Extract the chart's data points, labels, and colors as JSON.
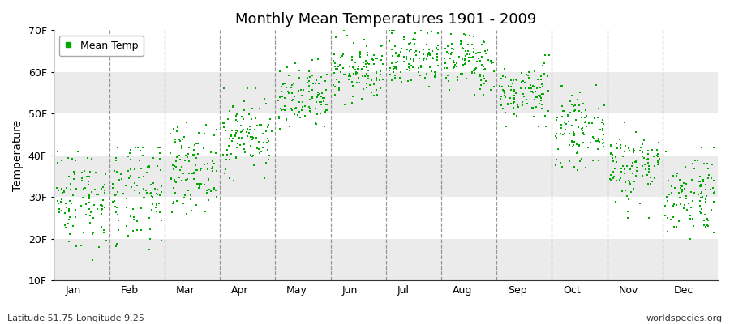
{
  "title": "Monthly Mean Temperatures 1901 - 2009",
  "ylabel": "Temperature",
  "bottom_left": "Latitude 51.75 Longitude 9.25",
  "bottom_right": "worldspecies.org",
  "legend_label": "Mean Temp",
  "marker_color": "#00aa00",
  "ylim": [
    10,
    70
  ],
  "yticks": [
    10,
    20,
    30,
    40,
    50,
    60,
    70
  ],
  "ytick_labels": [
    "10F",
    "20F",
    "30F",
    "40F",
    "50F",
    "60F",
    "70F"
  ],
  "months": [
    "Jan",
    "Feb",
    "Mar",
    "Apr",
    "May",
    "Jun",
    "Jul",
    "Aug",
    "Sep",
    "Oct",
    "Nov",
    "Dec"
  ],
  "month_means_f": [
    30.0,
    30.5,
    37.0,
    45.0,
    53.0,
    60.0,
    63.5,
    62.5,
    55.0,
    46.0,
    37.5,
    31.0
  ],
  "month_stds_f": [
    6.0,
    6.5,
    5.0,
    4.5,
    4.0,
    3.5,
    3.5,
    3.5,
    3.5,
    4.0,
    4.5,
    5.0
  ],
  "month_mins_f": [
    15.0,
    17.0,
    26.0,
    34.0,
    44.0,
    52.0,
    55.0,
    54.0,
    47.0,
    36.0,
    25.0,
    20.0
  ],
  "month_maxs_f": [
    41.0,
    42.0,
    48.0,
    56.0,
    64.0,
    70.0,
    70.0,
    69.0,
    64.0,
    57.0,
    48.0,
    42.0
  ],
  "n_years": 109,
  "background_bands": [
    {
      "ymin": 10,
      "ymax": 20,
      "color": "#ebebeb"
    },
    {
      "ymin": 20,
      "ymax": 30,
      "color": "#ffffff"
    },
    {
      "ymin": 30,
      "ymax": 40,
      "color": "#ebebeb"
    },
    {
      "ymin": 40,
      "ymax": 50,
      "color": "#ffffff"
    },
    {
      "ymin": 50,
      "ymax": 60,
      "color": "#ebebeb"
    },
    {
      "ymin": 60,
      "ymax": 70,
      "color": "#ffffff"
    }
  ],
  "figsize": [
    9.0,
    4.0
  ],
  "dpi": 100
}
